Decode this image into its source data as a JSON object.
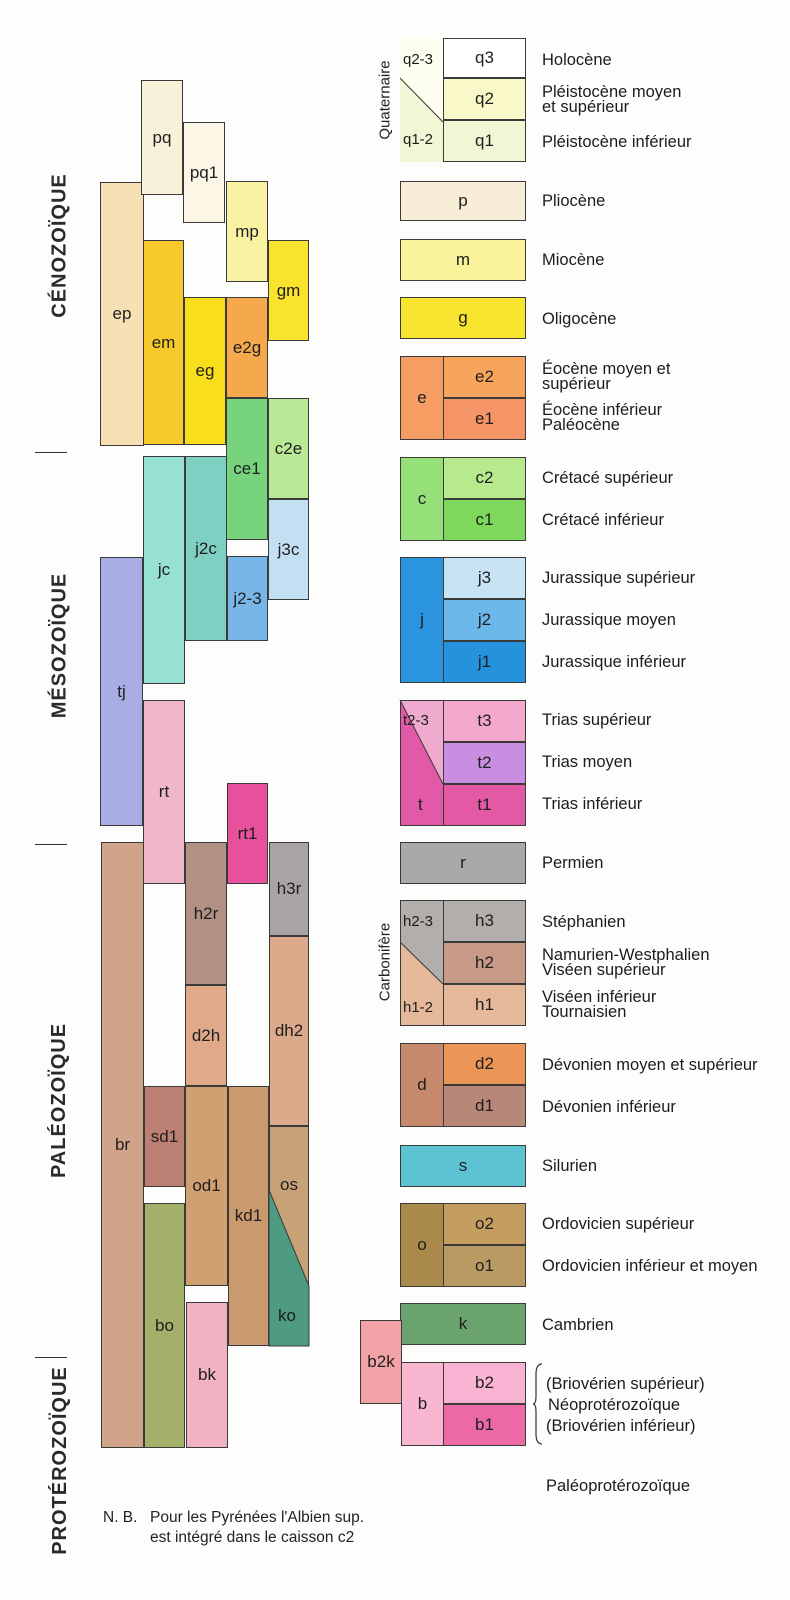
{
  "eras": [
    {
      "id": "cenozoique",
      "label": "CÉNOZOÏQUE"
    },
    {
      "id": "mesozoique",
      "label": "MÉSOZOÏQUE"
    },
    {
      "id": "paleozoique",
      "label": "PALÉOZOÏQUE"
    },
    {
      "id": "proterozoique",
      "label": "PROTÉROZOÏQUE"
    }
  ],
  "colors": {
    "q3": "#ffffff",
    "q2": "#f9f8c8",
    "q1": "#f1f6d4",
    "p": "#f8edd6",
    "m": "#faf39c",
    "g": "#f9e430",
    "e2": "#f7a55c",
    "e1": "#f59466",
    "c2": "#b7ea8c",
    "c1": "#7ed85b",
    "j3": "#c8e3f4",
    "j2": "#6db8ea",
    "j1": "#2592dc",
    "t3": "#f3a8cc",
    "t2": "#c98de1",
    "t1": "#e359a3",
    "r": "#a9a9a9",
    "h3": "#b1aeab",
    "h2": "#c69a87",
    "h1": "#e5b89a",
    "d2": "#eb9556",
    "d1": "#b78777",
    "s": "#5cc3d3",
    "o2": "#c59e5f",
    "o1": "#b99a63",
    "k": "#6aa36d",
    "b2": "#f8b3d3",
    "b1": "#eb69a5",
    "b2k": "#f2a3a7",
    "ep": "#f7e1b4",
    "pq": "#f9f0d9",
    "pq1": "#fbf6e6",
    "mp": "#f9f2a2",
    "gm": "#f9e32c",
    "em": "#f8c92a",
    "eg": "#f9de1c",
    "e2g": "#f5a84c",
    "ce1": "#78d47c",
    "c2e": "#b9e996",
    "jc": "#96e0d4",
    "j2c": "#7fcfc3",
    "j2-3": "#79b6e8",
    "j3c": "#c2e0f2",
    "tj": "#a8aee4",
    "rt": "#efb7c9",
    "rt1": "#e7509b",
    "br": "#d0a38a",
    "h2r": "#b19184",
    "h3r": "#a8a4a3",
    "d2h": "#dfa98a",
    "dh2": "#dda98b",
    "sd1": "#bc7f73",
    "od1": "#d0a071",
    "kd1": "#c89a6e",
    "os": "#c8a176",
    "ko": "#4e9b82",
    "bo": "#a3b06a",
    "bk": "#f1b3c2"
  },
  "left_columns": [
    {
      "code": "ep",
      "label": "ep"
    },
    {
      "code": "pq",
      "label": "pq"
    },
    {
      "code": "pq1",
      "label": "pq1"
    },
    {
      "code": "mp",
      "label": "mp"
    },
    {
      "code": "gm",
      "label": "gm"
    },
    {
      "code": "em",
      "label": "em"
    },
    {
      "code": "eg",
      "label": "eg"
    },
    {
      "code": "e2g",
      "label": "e2g"
    },
    {
      "code": "ce1",
      "label": "ce1"
    },
    {
      "code": "c2e",
      "label": "c2e"
    },
    {
      "code": "jc",
      "label": "jc"
    },
    {
      "code": "j2c",
      "label": "j2c"
    },
    {
      "code": "j2-3",
      "label": "j2-3"
    },
    {
      "code": "j3c",
      "label": "j3c"
    },
    {
      "code": "tj",
      "label": "tj"
    },
    {
      "code": "rt",
      "label": "rt"
    },
    {
      "code": "rt1",
      "label": "rt1"
    },
    {
      "code": "br",
      "label": "br"
    },
    {
      "code": "h2r",
      "label": "h2r"
    },
    {
      "code": "h3r",
      "label": "h3r"
    },
    {
      "code": "d2h",
      "label": "d2h"
    },
    {
      "code": "dh2",
      "label": "dh2"
    },
    {
      "code": "sd1",
      "label": "sd1"
    },
    {
      "code": "od1",
      "label": "od1"
    },
    {
      "code": "kd1",
      "label": "kd1"
    },
    {
      "code": "os",
      "label": "os"
    },
    {
      "code": "ko",
      "label": "ko"
    },
    {
      "code": "bo",
      "label": "bo"
    },
    {
      "code": "bk",
      "label": "bk"
    }
  ],
  "legend": {
    "q": {
      "group": "Quaternaire",
      "g23": "q2-3",
      "g12": "q1-2",
      "sub": [
        "q3",
        "q2",
        "q1"
      ],
      "labels": [
        "Holocène",
        "Pléistocène moyen et supérieur",
        "Pléistocène inférieur"
      ]
    },
    "p": {
      "code": "p",
      "label": "Pliocène"
    },
    "m": {
      "code": "m",
      "label": "Miocène"
    },
    "g": {
      "code": "g",
      "label": "Oligocène"
    },
    "e": {
      "code": "e",
      "sub": [
        "e2",
        "e1"
      ],
      "labels": [
        "Éocène moyen et supérieur",
        "Éocène inférieur Paléocène"
      ]
    },
    "c": {
      "code": "c",
      "sub": [
        "c2",
        "c1"
      ],
      "labels": [
        "Crétacé supérieur",
        "Crétacé inférieur"
      ]
    },
    "j": {
      "code": "j",
      "sub": [
        "j3",
        "j2",
        "j1"
      ],
      "labels": [
        "Jurassique supérieur",
        "Jurassique moyen",
        "Jurassique inférieur"
      ]
    },
    "t": {
      "code": "t",
      "g23": "t2-3",
      "sub": [
        "t3",
        "t2",
        "t1"
      ],
      "labels": [
        "Trias supérieur",
        "Trias moyen",
        "Trias inférieur"
      ]
    },
    "r": {
      "code": "r",
      "label": "Permien"
    },
    "h": {
      "group": "Carbonifère",
      "g23": "h2-3",
      "g12": "h1-2",
      "sub": [
        "h3",
        "h2",
        "h1"
      ],
      "labels": [
        "Stéphanien",
        "Namurien-Westphalien Viséen supérieur",
        "Viséen inférieur Tournaisien"
      ]
    },
    "d": {
      "code": "d",
      "sub": [
        "d2",
        "d1"
      ],
      "labels": [
        "Dévonien moyen et supérieur",
        "Dévonien inférieur"
      ]
    },
    "s": {
      "code": "s",
      "label": "Silurien"
    },
    "o": {
      "code": "o",
      "sub": [
        "o2",
        "o1"
      ],
      "labels": [
        "Ordovicien supérieur",
        "Ordovicien inférieur et moyen"
      ]
    },
    "k": {
      "code": "k",
      "label": "Cambrien"
    },
    "b": {
      "code": "b",
      "b2k": "b2k",
      "sub": [
        "b2",
        "b1"
      ],
      "labels": [
        "(Briovérien supérieur)",
        "Néoprotérozoïque",
        "(Briovérien inférieur)"
      ]
    },
    "paleoproterozoique": "Paléoprotérozoïque"
  },
  "note": {
    "prefix": "N. B.",
    "line1": "Pour les Pyrénées l'Albien sup.",
    "line2": "est intégré dans le caisson c2"
  }
}
